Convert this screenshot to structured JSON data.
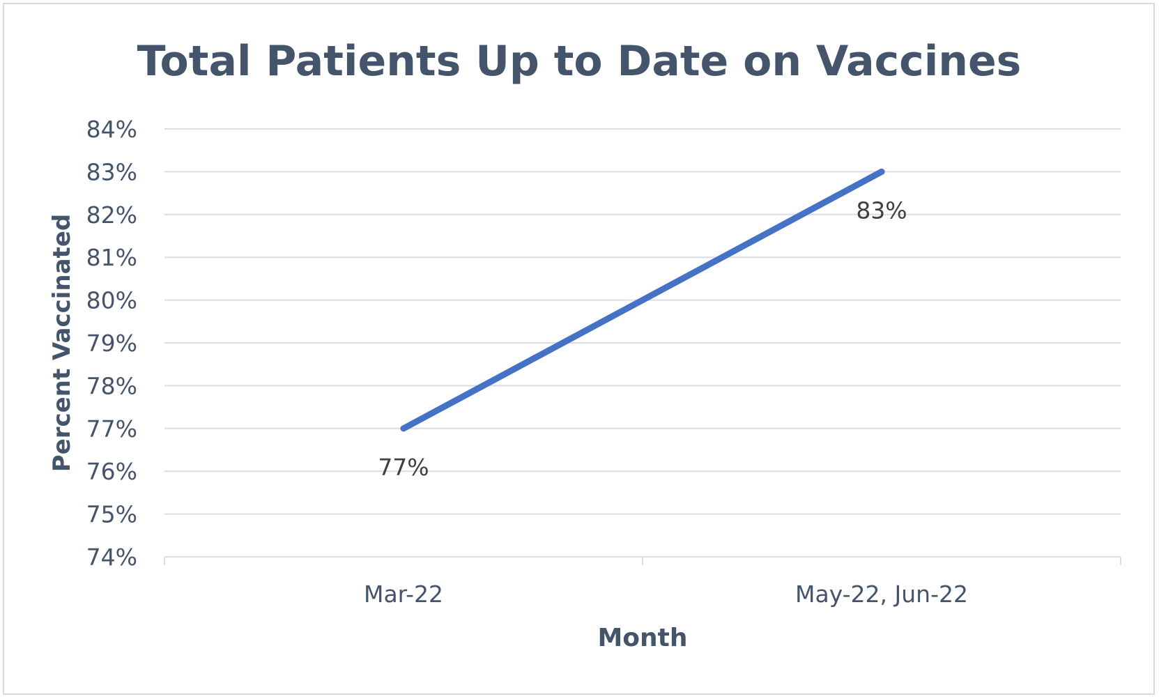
{
  "chart_data": {
    "type": "line",
    "title": "Total Patients Up to Date on Vaccines",
    "xlabel": "Month",
    "ylabel": "Percent Vaccinated",
    "categories": [
      "Mar-22",
      "May-22, Jun-22"
    ],
    "series": [
      {
        "values": [
          0.77,
          0.83
        ],
        "data_labels": [
          "77%",
          "83%"
        ],
        "color": "#4472c4"
      }
    ],
    "ylim": [
      0.74,
      0.84
    ],
    "yticks": [
      "74%",
      "75%",
      "76%",
      "77%",
      "78%",
      "79%",
      "80%",
      "81%",
      "82%",
      "83%",
      "84%"
    ],
    "grid": true,
    "legend": "none"
  },
  "colors": {
    "text": "#44546a",
    "gridline": "#d9dde4",
    "series": "#4472c4",
    "border": "#d9d9d9"
  }
}
